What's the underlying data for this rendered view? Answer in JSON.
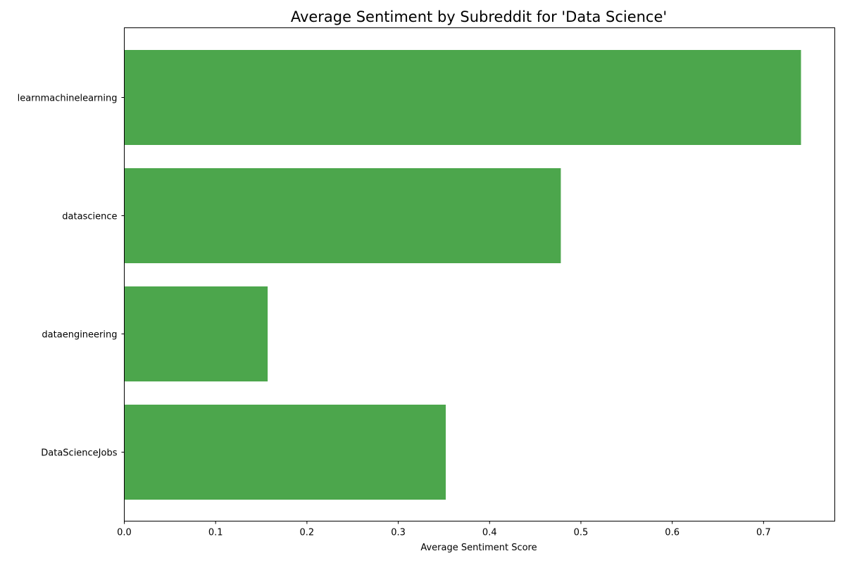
{
  "chart_data": {
    "type": "bar",
    "orientation": "horizontal",
    "title": "Average Sentiment by Subreddit for 'Data Science'",
    "xlabel": "Average Sentiment Score",
    "ylabel": "",
    "categories": [
      "learnmachinelearning",
      "datascience",
      "dataengineering",
      "DataScienceJobs"
    ],
    "values": [
      0.741,
      0.478,
      0.157,
      0.352
    ],
    "xlim": [
      0,
      0.778
    ],
    "xticks": [
      "0.0",
      "0.1",
      "0.2",
      "0.3",
      "0.4",
      "0.5",
      "0.6",
      "0.7"
    ],
    "grid": false,
    "legend": "none",
    "bar_color": "#4ca64c"
  }
}
